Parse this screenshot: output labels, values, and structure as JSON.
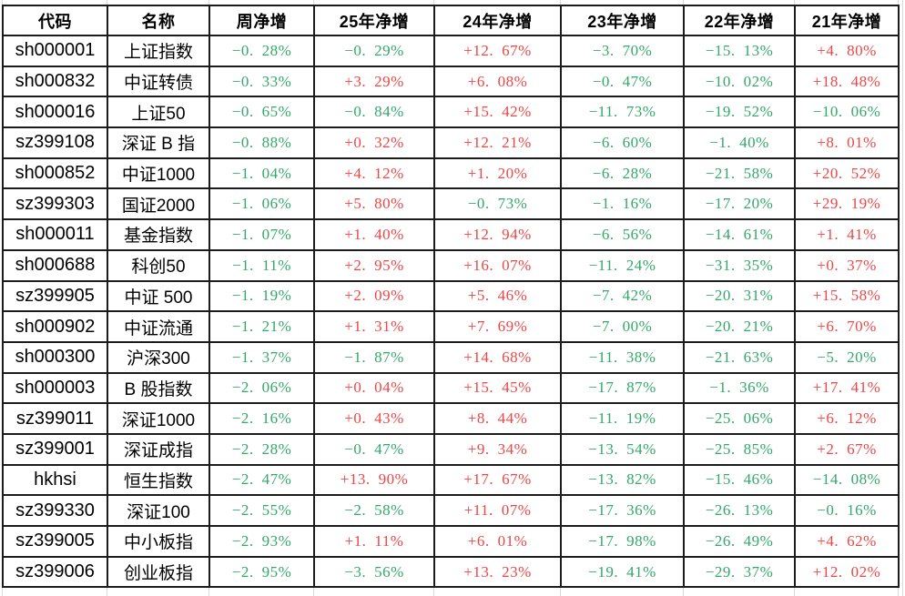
{
  "chart_data": {
    "type": "table",
    "title": "",
    "columns": [
      "代码",
      "名称",
      "周净增",
      "25年净增",
      "24年净增",
      "23年净增",
      "22年净增",
      "21年净增"
    ],
    "value_color_rule": {
      "positive_prefix": "+",
      "positive_color": "red",
      "negative_color": "green"
    },
    "rows": [
      {
        "code": "sh000001",
        "name": "上证指数",
        "values": [
          "-0.28%",
          "-0.29%",
          "+12.67%",
          "-3.70%",
          "-15.13%",
          "+4.80%"
        ]
      },
      {
        "code": "sh000832",
        "name": "中证转债",
        "values": [
          "-0.33%",
          "+3.29%",
          "+6.08%",
          "-0.47%",
          "-10.02%",
          "+18.48%"
        ]
      },
      {
        "code": "sh000016",
        "name": "上证50",
        "values": [
          "-0.65%",
          "-0.84%",
          "+15.42%",
          "-11.73%",
          "-19.52%",
          "-10.06%"
        ]
      },
      {
        "code": "sz399108",
        "name": "深证 B 指",
        "values": [
          "-0.88%",
          "+0.32%",
          "+12.21%",
          "-6.60%",
          "-1.40%",
          "+8.01%"
        ]
      },
      {
        "code": "sh000852",
        "name": "中证1000",
        "values": [
          "-1.04%",
          "+4.12%",
          "+1.20%",
          "-6.28%",
          "-21.58%",
          "+20.52%"
        ]
      },
      {
        "code": "sz399303",
        "name": "国证2000",
        "values": [
          "-1.06%",
          "+5.80%",
          "-0.73%",
          "-1.16%",
          "-17.20%",
          "+29.19%"
        ]
      },
      {
        "code": "sh000011",
        "name": "基金指数",
        "values": [
          "-1.07%",
          "+1.40%",
          "+12.94%",
          "-6.56%",
          "-14.61%",
          "+1.41%"
        ]
      },
      {
        "code": "sh000688",
        "name": "科创50",
        "values": [
          "-1.11%",
          "+2.95%",
          "+16.07%",
          "-11.24%",
          "-31.35%",
          "+0.37%"
        ]
      },
      {
        "code": "sz399905",
        "name": "中证 500",
        "values": [
          "-1.19%",
          "+2.09%",
          "+5.46%",
          "-7.42%",
          "-20.31%",
          "+15.58%"
        ]
      },
      {
        "code": "sh000902",
        "name": "中证流通",
        "values": [
          "-1.21%",
          "+1.31%",
          "+7.69%",
          "-7.00%",
          "-20.21%",
          "+6.70%"
        ]
      },
      {
        "code": "sh000300",
        "name": "沪深300",
        "values": [
          "-1.37%",
          "-1.87%",
          "+14.68%",
          "-11.38%",
          "-21.63%",
          "-5.20%"
        ]
      },
      {
        "code": "sh000003",
        "name": "B 股指数",
        "values": [
          "-2.06%",
          "+0.04%",
          "+15.45%",
          "-17.87%",
          "-1.36%",
          "+17.41%"
        ]
      },
      {
        "code": "sz399011",
        "name": "深证1000",
        "values": [
          "-2.16%",
          "+0.43%",
          "+8.44%",
          "-11.19%",
          "-25.06%",
          "+6.12%"
        ]
      },
      {
        "code": "sz399001",
        "name": "深证成指",
        "values": [
          "-2.28%",
          "-0.47%",
          "+9.34%",
          "-13.54%",
          "-25.85%",
          "+2.67%"
        ]
      },
      {
        "code": "hkhsi",
        "name": "恒生指数",
        "values": [
          "-2.47%",
          "+13.90%",
          "+17.67%",
          "-13.82%",
          "-15.46%",
          "-14.08%"
        ]
      },
      {
        "code": "sz399330",
        "name": "深证100",
        "values": [
          "-2.55%",
          "-2.58%",
          "+11.07%",
          "-17.36%",
          "-26.13%",
          "-0.16%"
        ]
      },
      {
        "code": "sz399005",
        "name": "中小板指",
        "values": [
          "-2.93%",
          "+1.11%",
          "+6.01%",
          "-17.98%",
          "-26.49%",
          "+4.62%"
        ]
      },
      {
        "code": "sz399006",
        "name": "创业板指",
        "values": [
          "-2.95%",
          "-3.56%",
          "+13.23%",
          "-19.41%",
          "-29.37%",
          "+12.02%"
        ]
      }
    ]
  },
  "colors": {
    "positive_value": "#ee4646",
    "negative_value": "#34a76b",
    "table_border": "#1c1c1c",
    "faint_gridline": "#d9d9d9",
    "text": "#000000",
    "background": "#ffffff"
  }
}
